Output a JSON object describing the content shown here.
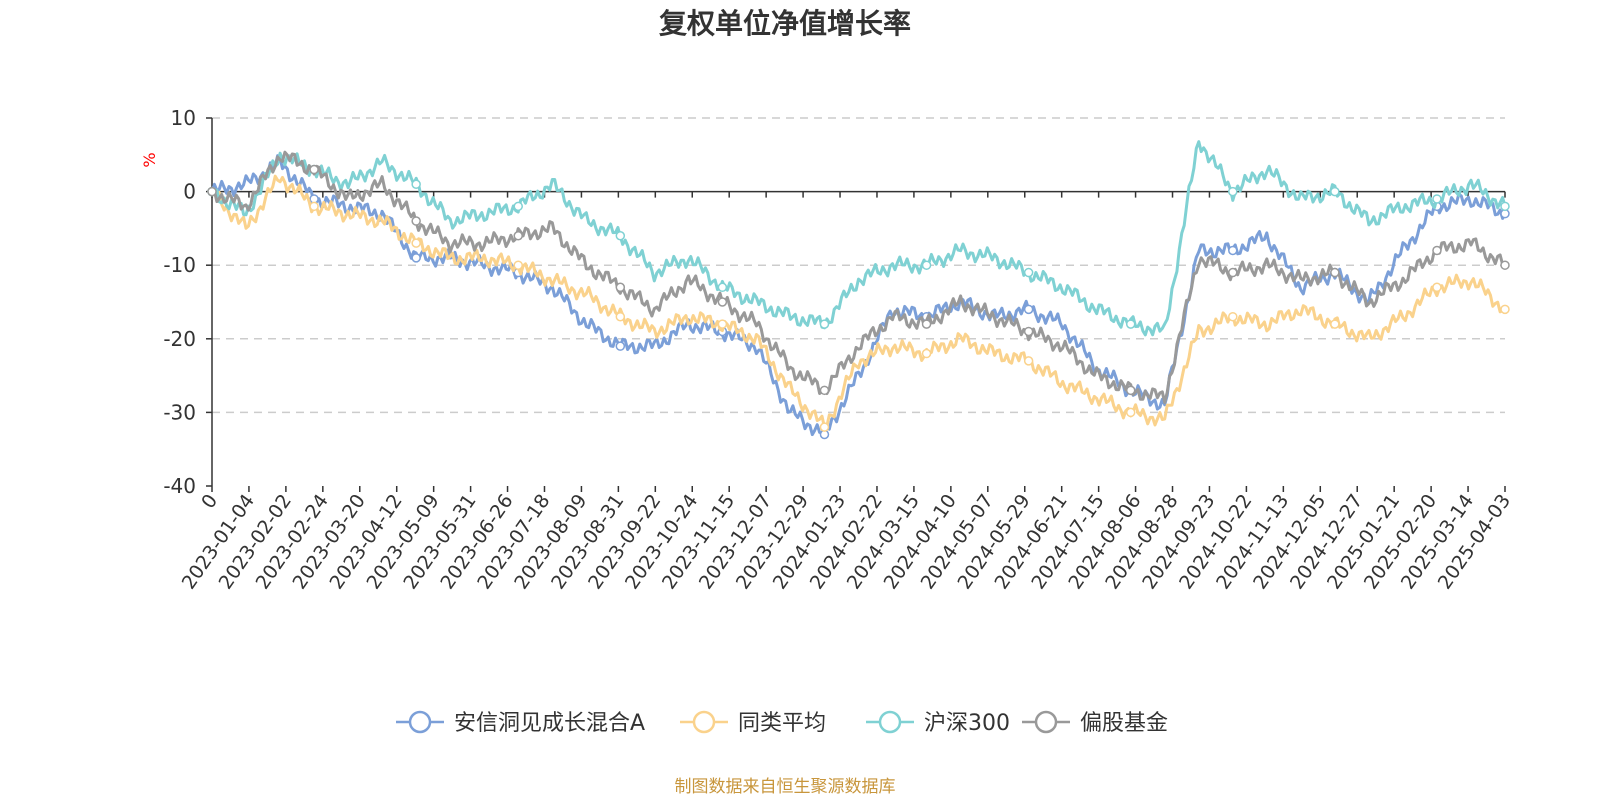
{
  "chart_data": {
    "type": "line",
    "title": "复权单位净值增长率",
    "ylabel": "%",
    "ylim": [
      -40,
      10
    ],
    "yticks": [
      10,
      0,
      -10,
      -20,
      -30,
      -40
    ],
    "xtick_labels": [
      "0",
      "2023-01-04",
      "2023-02-02",
      "2023-02-24",
      "2023-03-20",
      "2023-04-12",
      "2023-05-09",
      "2023-05-31",
      "2023-06-26",
      "2023-07-18",
      "2023-08-09",
      "2023-08-31",
      "2023-09-22",
      "2023-10-24",
      "2023-11-15",
      "2023-12-07",
      "2023-12-29",
      "2024-01-23",
      "2024-02-22",
      "2024-03-15",
      "2024-04-10",
      "2024-05-07",
      "2024-05-29",
      "2024-06-21",
      "2024-07-15",
      "2024-08-06",
      "2024-08-28",
      "2024-09-23",
      "2024-10-22",
      "2024-11-13",
      "2024-12-05",
      "2024-12-27",
      "2025-01-21",
      "2025-02-20",
      "2025-03-14",
      "2025-04-03"
    ],
    "grid": "dashed horizontal",
    "legend_position": "bottom-center",
    "series": [
      {
        "name": "安信洞见成长混合A",
        "color": "#7b9fd8",
        "values": [
          0,
          1,
          4,
          -1,
          -2,
          -3,
          -9,
          -9,
          -10,
          -11,
          -13,
          -18,
          -21,
          -21,
          -18,
          -19,
          -21,
          -30,
          -33,
          -25,
          -16,
          -17,
          -15,
          -17,
          -16,
          -18,
          -24,
          -27,
          -29,
          -8,
          -8,
          -6,
          -13,
          -11,
          -15,
          -8,
          -2,
          -1,
          -3
        ]
      },
      {
        "name": "同类平均",
        "color": "#fad28c",
        "values": [
          0,
          -5,
          2,
          -2,
          -3,
          -4,
          -7,
          -9,
          -9,
          -10,
          -12,
          -14,
          -17,
          -19,
          -17,
          -18,
          -20,
          -27,
          -32,
          -23,
          -21,
          -22,
          -20,
          -22,
          -23,
          -26,
          -28,
          -30,
          -31,
          -19,
          -17,
          -18,
          -16,
          -18,
          -20,
          -17,
          -13,
          -12,
          -16
        ]
      },
      {
        "name": "沪深300",
        "color": "#7fd1d3",
        "values": [
          0,
          -3,
          5,
          3,
          1,
          4,
          1,
          -4,
          -3,
          -2,
          1,
          -4,
          -6,
          -11,
          -9,
          -13,
          -15,
          -17,
          -18,
          -12,
          -10,
          -10,
          -8,
          -9,
          -11,
          -13,
          -16,
          -18,
          -19,
          7,
          0,
          3,
          -1,
          0,
          -4,
          -2,
          -1,
          1,
          -2
        ]
      },
      {
        "name": "偏股基金",
        "color": "#999999",
        "values": [
          0,
          -2,
          5,
          3,
          -1,
          1,
          -4,
          -7,
          -7,
          -6,
          -5,
          -10,
          -13,
          -16,
          -12,
          -15,
          -18,
          -24,
          -27,
          -21,
          -17,
          -18,
          -15,
          -17,
          -19,
          -21,
          -25,
          -27,
          -28,
          -9,
          -11,
          -10,
          -12,
          -11,
          -15,
          -12,
          -8,
          -7,
          -10
        ]
      }
    ],
    "source_note": "制图数据来自恒生聚源数据库"
  }
}
